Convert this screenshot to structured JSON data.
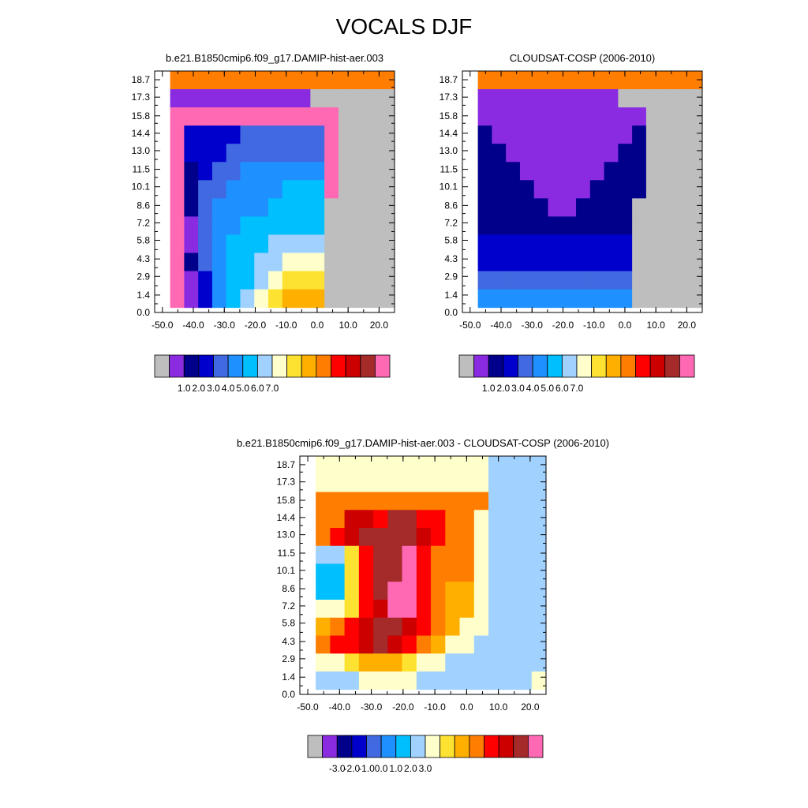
{
  "title": "VOCALS DJF",
  "heights": [
    "0.0",
    "1.4",
    "2.9",
    "4.3",
    "5.8",
    "7.2",
    "8.6",
    "10.1",
    "11.5",
    "13.0",
    "14.4",
    "15.8",
    "17.3",
    "18.7"
  ],
  "xticks": [
    "-50.0",
    "-40.0",
    "-30.0",
    "-20.0",
    "-10.0",
    "0.0",
    "10.0",
    "20.0"
  ],
  "palette": [
    "#bebebe",
    "#8a2be2",
    "#00008b",
    "#0000cd",
    "#4169e1",
    "#1e90ff",
    "#00bfff",
    "#a0d1ff",
    "#ffffcc",
    "#fde232",
    "#ffaf00",
    "#ff7d00",
    "#ff0000",
    "#cd0000",
    "#a52a2a",
    "#ff69b4"
  ],
  "chart_data": [
    {
      "type": "heatmap",
      "title": "b.e21.B1850cmip6.f09_g17.DAMIP-hist-aer.003",
      "xlim": [
        -52.5,
        25
      ],
      "ylim": [
        0,
        19.4
      ],
      "colorbar_labels": [
        "1.0",
        "2.0",
        "3.0",
        "4.0",
        "5.0",
        "6.0",
        "7.0"
      ],
      "values": [
        [
          11,
          11,
          11,
          11,
          11,
          11,
          11,
          11,
          11,
          11,
          11,
          11,
          11,
          11,
          11,
          11
        ],
        [
          1,
          1,
          1,
          1,
          1,
          1,
          1,
          1,
          1,
          1,
          0,
          0,
          0,
          0,
          0,
          0
        ],
        [
          15,
          15,
          15,
          15,
          15,
          15,
          15,
          15,
          15,
          15,
          15,
          15,
          0,
          0,
          0,
          0
        ],
        [
          15,
          3,
          3,
          3,
          3,
          4,
          4,
          4,
          4,
          4,
          4,
          15,
          0,
          0,
          0,
          0
        ],
        [
          15,
          3,
          3,
          3,
          4,
          4,
          4,
          4,
          4,
          4,
          4,
          15,
          0,
          0,
          0,
          0
        ],
        [
          15,
          2,
          3,
          4,
          4,
          5,
          5,
          5,
          5,
          5,
          5,
          15,
          0,
          0,
          0,
          0
        ],
        [
          15,
          2,
          4,
          4,
          5,
          5,
          5,
          5,
          6,
          6,
          6,
          15,
          0,
          0,
          0,
          0
        ],
        [
          15,
          2,
          4,
          5,
          5,
          5,
          5,
          6,
          6,
          6,
          6,
          0,
          0,
          0,
          0,
          0
        ],
        [
          15,
          1,
          4,
          5,
          5,
          6,
          6,
          6,
          6,
          6,
          6,
          0,
          0,
          0,
          0,
          0
        ],
        [
          15,
          1,
          4,
          5,
          6,
          6,
          6,
          7,
          7,
          7,
          7,
          0,
          0,
          0,
          0,
          0
        ],
        [
          15,
          2,
          4,
          5,
          6,
          6,
          7,
          7,
          8,
          8,
          8,
          0,
          0,
          0,
          0,
          0
        ],
        [
          15,
          1,
          3,
          5,
          6,
          6,
          7,
          8,
          9,
          9,
          9,
          0,
          0,
          0,
          0,
          0
        ],
        [
          15,
          1,
          3,
          5,
          6,
          7,
          8,
          9,
          10,
          10,
          10,
          0,
          0,
          0,
          0,
          0
        ]
      ]
    },
    {
      "type": "heatmap",
      "title": "CLOUDSAT-COSP (2006-2010)",
      "xlim": [
        -52.5,
        25
      ],
      "ylim": [
        0,
        19.4
      ],
      "colorbar_labels": [
        "1.0",
        "2.0",
        "3.0",
        "4.0",
        "5.0",
        "6.0",
        "7.0"
      ],
      "values": [
        [
          11,
          11,
          11,
          11,
          11,
          11,
          11,
          11,
          11,
          11,
          11,
          11,
          11,
          11,
          11,
          11
        ],
        [
          1,
          1,
          1,
          1,
          1,
          1,
          1,
          1,
          1,
          1,
          0,
          0,
          0,
          0,
          0,
          0
        ],
        [
          1,
          1,
          1,
          1,
          1,
          1,
          1,
          1,
          1,
          1,
          1,
          1,
          0,
          0,
          0,
          0
        ],
        [
          2,
          1,
          1,
          1,
          1,
          1,
          1,
          1,
          1,
          1,
          1,
          2,
          0,
          0,
          0,
          0
        ],
        [
          2,
          2,
          1,
          1,
          1,
          1,
          1,
          1,
          1,
          1,
          2,
          2,
          0,
          0,
          0,
          0
        ],
        [
          2,
          2,
          2,
          1,
          1,
          1,
          1,
          1,
          1,
          2,
          2,
          2,
          0,
          0,
          0,
          0
        ],
        [
          2,
          2,
          2,
          2,
          1,
          1,
          1,
          1,
          2,
          2,
          2,
          2,
          0,
          0,
          0,
          0
        ],
        [
          2,
          2,
          2,
          2,
          2,
          1,
          1,
          2,
          2,
          2,
          2,
          0,
          0,
          0,
          0,
          0
        ],
        [
          2,
          2,
          2,
          2,
          2,
          2,
          2,
          2,
          2,
          2,
          2,
          0,
          0,
          0,
          0,
          0
        ],
        [
          3,
          3,
          3,
          3,
          3,
          3,
          3,
          3,
          3,
          3,
          3,
          0,
          0,
          0,
          0,
          0
        ],
        [
          3,
          3,
          3,
          3,
          3,
          3,
          3,
          3,
          3,
          3,
          3,
          0,
          0,
          0,
          0,
          0
        ],
        [
          4,
          4,
          4,
          4,
          4,
          4,
          4,
          4,
          4,
          4,
          4,
          0,
          0,
          0,
          0,
          0
        ],
        [
          5,
          5,
          5,
          5,
          5,
          5,
          5,
          5,
          5,
          5,
          5,
          0,
          0,
          0,
          0,
          0
        ]
      ]
    },
    {
      "type": "heatmap",
      "title": "b.e21.B1850cmip6.f09_g17.DAMIP-hist-aer.003 - CLOUDSAT-COSP (2006-2010)",
      "xlim": [
        -52.5,
        25
      ],
      "ylim": [
        0,
        19.4
      ],
      "colorbar_labels": [
        "-3.0",
        "-2.0",
        "-1.0",
        "0.0",
        "1.0",
        "2.0",
        "3.0"
      ],
      "values": [
        [
          8,
          8,
          8,
          8,
          8,
          8,
          8,
          8,
          8,
          8,
          8,
          8,
          7,
          7,
          7,
          7
        ],
        [
          8,
          8,
          8,
          8,
          8,
          8,
          8,
          8,
          8,
          8,
          8,
          8,
          7,
          7,
          7,
          7
        ],
        [
          11,
          11,
          11,
          11,
          11,
          11,
          11,
          11,
          11,
          11,
          11,
          11,
          7,
          7,
          7,
          7
        ],
        [
          11,
          11,
          13,
          13,
          12,
          14,
          14,
          12,
          12,
          11,
          11,
          8,
          7,
          7,
          7,
          7
        ],
        [
          11,
          12,
          13,
          14,
          14,
          14,
          14,
          13,
          12,
          11,
          11,
          8,
          7,
          7,
          7,
          7
        ],
        [
          7,
          7,
          9,
          12,
          14,
          14,
          15,
          12,
          11,
          11,
          11,
          8,
          7,
          7,
          7,
          7
        ],
        [
          6,
          6,
          9,
          12,
          14,
          14,
          15,
          12,
          11,
          11,
          11,
          8,
          7,
          7,
          7,
          7
        ],
        [
          6,
          6,
          9,
          12,
          14,
          15,
          15,
          12,
          11,
          10,
          10,
          8,
          7,
          7,
          7,
          7
        ],
        [
          8,
          8,
          9,
          12,
          13,
          15,
          15,
          12,
          11,
          10,
          10,
          8,
          7,
          7,
          7,
          7
        ],
        [
          10,
          11,
          12,
          13,
          14,
          14,
          13,
          12,
          11,
          10,
          8,
          8,
          7,
          7,
          7,
          7
        ],
        [
          11,
          12,
          12,
          13,
          14,
          13,
          12,
          11,
          10,
          8,
          8,
          7,
          7,
          7,
          7,
          7
        ],
        [
          8,
          8,
          9,
          10,
          10,
          10,
          9,
          8,
          8,
          7,
          7,
          7,
          7,
          7,
          7,
          7
        ],
        [
          7,
          7,
          7,
          8,
          8,
          8,
          8,
          7,
          7,
          7,
          7,
          7,
          7,
          7,
          7,
          8
        ]
      ]
    }
  ]
}
